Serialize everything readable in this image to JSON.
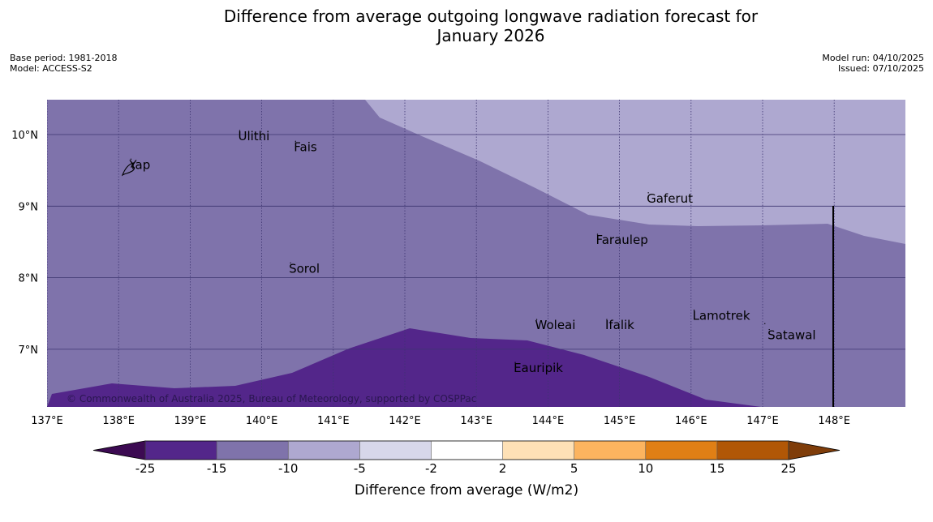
{
  "title_line1": "Difference from average outgoing longwave radiation forecast for",
  "title_line2": "January 2026",
  "meta": {
    "base_period": "Base period: 1981-2018",
    "model": "Model: ACCESS-S2",
    "model_run": "Model run: 04/10/2025",
    "issued": "Issued: 07/10/2025"
  },
  "map": {
    "lon_labels": [
      "137°E",
      "138°E",
      "139°E",
      "140°E",
      "141°E",
      "142°E",
      "143°E",
      "144°E",
      "145°E",
      "146°E",
      "147°E",
      "148°E"
    ],
    "lat_labels": [
      "10°N",
      "9°N",
      "8°N",
      "7°N"
    ],
    "places": [
      {
        "name": "Yap",
        "lon": 138.15,
        "lat": 9.52
      },
      {
        "name": "Ulithi",
        "lon": 139.67,
        "lat": 9.92
      },
      {
        "name": "Fais",
        "lon": 140.45,
        "lat": 9.77
      },
      {
        "name": "Gaferut",
        "lon": 145.38,
        "lat": 9.05
      },
      {
        "name": "Faraulep",
        "lon": 144.67,
        "lat": 8.47
      },
      {
        "name": "Sorol",
        "lon": 140.38,
        "lat": 8.07
      },
      {
        "name": "Lamotrek",
        "lon": 146.02,
        "lat": 7.41
      },
      {
        "name": "Woleai",
        "lon": 143.82,
        "lat": 7.28
      },
      {
        "name": "Ifalik",
        "lon": 144.8,
        "lat": 7.28
      },
      {
        "name": "Satawal",
        "lon": 147.07,
        "lat": 7.14
      },
      {
        "name": "Eauripik",
        "lon": 143.52,
        "lat": 6.68
      }
    ],
    "copyright": "© Commonwealth of Australia 2025, Bureau of Meteorology, supported by COSPPac",
    "fill_colors": {
      "band_15": "#7f73ab",
      "band_10": "#aea8d0",
      "band_25": "#53268a"
    }
  },
  "colorbar": {
    "label": "Difference from average (W/m2)",
    "ticks": [
      "-25",
      "-15",
      "-10",
      "-5",
      "-2",
      "2",
      "5",
      "10",
      "15",
      "25"
    ],
    "colors": [
      "#3c0a52",
      "#53268a",
      "#7f73ab",
      "#aea8d0",
      "#d7d7ea",
      "#ffffff",
      "#fee1b6",
      "#fcb45f",
      "#e07f15",
      "#b15706",
      "#7f3d0a"
    ]
  }
}
